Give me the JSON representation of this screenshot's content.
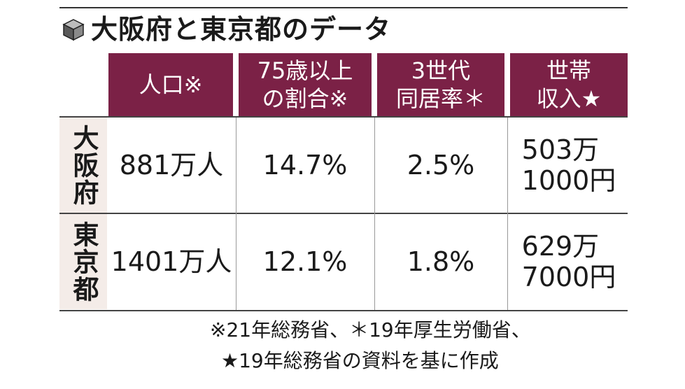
{
  "title": "大阪府と東京都のデータ",
  "icon": "cube-icon",
  "accent_color": "#7b2146",
  "columns": [
    "人口※",
    "75歳以上\nの割合※",
    "3世代\n同居率＊",
    "世帯\n収入★"
  ],
  "rows": [
    {
      "label": "大阪府",
      "values": [
        "881万人",
        "14.7%",
        "2.5%",
        "503万\n1000円"
      ]
    },
    {
      "label": "東京都",
      "values": [
        "1401万人",
        "12.1%",
        "1.8%",
        "629万\n7000円"
      ]
    }
  ],
  "notes": [
    "※21年総務省、＊19年厚生労働省、",
    "★19年総務省の資料を基に作成"
  ]
}
